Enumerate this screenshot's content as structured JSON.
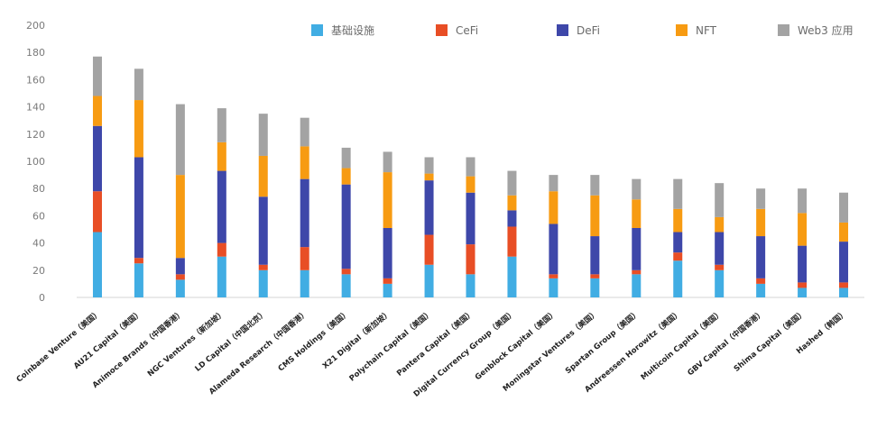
{
  "chart_data": {
    "type": "bar",
    "stacked": true,
    "title": "",
    "xlabel": "",
    "ylabel": "",
    "ylim": [
      0,
      200
    ],
    "yticks": [
      "0",
      "20",
      "40",
      "60",
      "80",
      "100",
      "120",
      "140",
      "160",
      "180",
      "200"
    ],
    "grid": false,
    "legend_position": "top-right",
    "categories": [
      "Coinbase Venture（美国）",
      "AU21 Capital（美国）",
      "Animoce Brands（中国香港）",
      "NGC Ventures（新加坡）",
      "LD Capital（中国北京）",
      "Alameda Research（中国香港）",
      "CMS Holdings（美国）",
      "X21 Digital（新加坡）",
      "Polychain Capital（美国）",
      "Pantera Capital（美国）",
      "Digital Currency Group（美国）",
      "Genblock Capital（美国）",
      "Moningstar Ventures（美国）",
      "Spartan Group（美国）",
      "Andreessen Horowitz（美国）",
      "Multicoin Capital（美国）",
      "GBV Capital（中国香港）",
      "Shima Capital（美国）",
      "Hashed（韩国）"
    ],
    "series": [
      {
        "name": "基础设施",
        "color": "#41ade3",
        "values": [
          48,
          25,
          13,
          30,
          20,
          20,
          17,
          10,
          24,
          17,
          30,
          14,
          14,
          17,
          27,
          20,
          10,
          7,
          7
        ]
      },
      {
        "name": "CeFi",
        "color": "#e84e25",
        "values": [
          30,
          4,
          4,
          10,
          4,
          17,
          4,
          4,
          22,
          22,
          22,
          3,
          3,
          3,
          6,
          4,
          4,
          4,
          4
        ]
      },
      {
        "name": "DeFi",
        "color": "#3e47a9",
        "values": [
          48,
          74,
          12,
          53,
          50,
          50,
          62,
          37,
          40,
          38,
          12,
          37,
          28,
          31,
          15,
          24,
          31,
          27,
          30
        ]
      },
      {
        "name": "NFT",
        "color": "#f79b12",
        "values": [
          22,
          42,
          61,
          21,
          30,
          24,
          12,
          41,
          5,
          12,
          11,
          24,
          30,
          21,
          17,
          11,
          20,
          24,
          14
        ]
      },
      {
        "name": "Web3 应用",
        "color": "#a3a3a3",
        "values": [
          29,
          23,
          52,
          25,
          31,
          21,
          15,
          15,
          12,
          14,
          18,
          12,
          15,
          15,
          22,
          25,
          15,
          18,
          22
        ]
      }
    ]
  }
}
